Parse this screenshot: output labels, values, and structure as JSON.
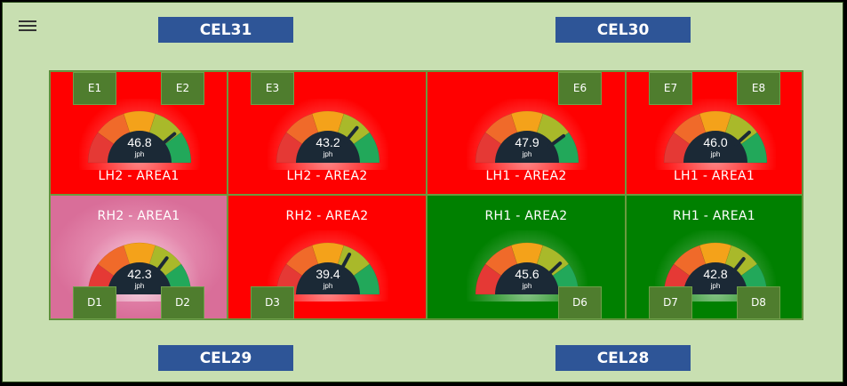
{
  "colors": {
    "background": "#c8dfb1",
    "cel_button": "#2e5597",
    "status_red": "#ff0000",
    "status_green": "#008000",
    "status_pink": "#d96e99",
    "station_chip": "#4f7d2e",
    "gauge_dial": "#1b2936"
  },
  "menu": {
    "icon": "hamburger-menu-icon"
  },
  "cels": {
    "top_left": "CEL31",
    "top_right": "CEL30",
    "bottom_left": "CEL29",
    "bottom_right": "CEL28"
  },
  "gauge_scale": {
    "min": 0,
    "max": 60,
    "unit": "jph"
  },
  "cells": [
    {
      "label": "LH2 - AREA1",
      "status": "red",
      "value": "46.8",
      "unit": "jph",
      "chips": [
        "E1",
        "E2"
      ]
    },
    {
      "label": "LH2 - AREA2",
      "status": "red",
      "value": "43.2",
      "unit": "jph",
      "chips": [
        "E3"
      ]
    },
    {
      "label": "LH1 - AREA2",
      "status": "red",
      "value": "47.9",
      "unit": "jph",
      "chips": [
        "E6"
      ]
    },
    {
      "label": "LH1 - AREA1",
      "status": "red",
      "value": "46.0",
      "unit": "jph",
      "chips": [
        "E7",
        "E8"
      ]
    },
    {
      "label": "RH2 - AREA1",
      "status": "pink",
      "value": "42.3",
      "unit": "jph",
      "chips": [
        "D1",
        "D2"
      ]
    },
    {
      "label": "RH2 - AREA2",
      "status": "red",
      "value": "39.4",
      "unit": "jph",
      "chips": [
        "D3"
      ]
    },
    {
      "label": "RH1 - AREA2",
      "status": "green",
      "value": "45.6",
      "unit": "jph",
      "chips": [
        "D6"
      ]
    },
    {
      "label": "RH1 - AREA1",
      "status": "green",
      "value": "42.8",
      "unit": "jph",
      "chips": [
        "D7",
        "D8"
      ]
    }
  ]
}
